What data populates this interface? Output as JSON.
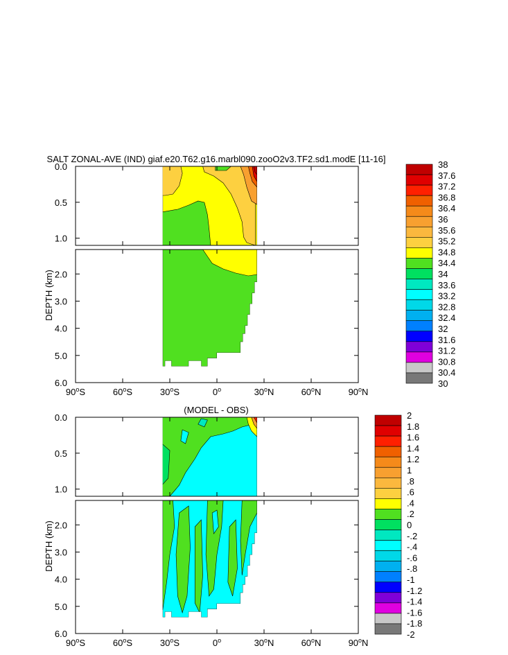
{
  "chart_data": [
    {
      "type": "heatmap",
      "title": "SALT ZONAL-AVE (IND) giaf.e20.T62.g16.marbl090.zooO2v3.TF2.sd1.modE [11-16]",
      "ylabel": "DEPTH (km)",
      "xlabel": "",
      "x_ticks": [
        "90°S",
        "60°S",
        "30°S",
        "0°",
        "30°N",
        "60°N",
        "90°N"
      ],
      "x_tick_values": [
        -90,
        -60,
        -30,
        0,
        30,
        60,
        90
      ],
      "xlim": [
        -90,
        90
      ],
      "y_ticks_upper": [
        "0.0",
        "0.5",
        "1.0"
      ],
      "y_ticks_lower": [
        "2.0",
        "3.0",
        "4.0",
        "5.0",
        "6.0"
      ],
      "ylim_upper_km": [
        0,
        1.1
      ],
      "ylim_lower_km": [
        1.1,
        6.0
      ],
      "colorbar_levels": [
        "38",
        "37.6",
        "37.2",
        "36.8",
        "36.4",
        "36",
        "35.6",
        "35.2",
        "34.8",
        "34.4",
        "34",
        "33.6",
        "33.2",
        "32.8",
        "32.4",
        "32",
        "31.6",
        "31.2",
        "30.8",
        "30.4",
        "30"
      ],
      "colorbar_colors": [
        "#c00000",
        "#e00000",
        "#ff2000",
        "#f06000",
        "#f58a1a",
        "#f8a030",
        "#fbb83e",
        "#fdd040",
        "#ffff00",
        "#50e020",
        "#00e060",
        "#00e8c0",
        "#00ffff",
        "#00d8e8",
        "#00b0f0",
        "#0080ff",
        "#0000ff",
        "#8000d8",
        "#e000e0",
        "#c8c8c8",
        "#787878"
      ]
    },
    {
      "type": "heatmap",
      "title": "(MODEL - OBS)",
      "ylabel": "DEPTH (km)",
      "xlabel": "",
      "x_ticks": [
        "90°S",
        "60°S",
        "30°S",
        "0°",
        "30°N",
        "60°N",
        "90°N"
      ],
      "x_tick_values": [
        -90,
        -60,
        -30,
        0,
        30,
        60,
        90
      ],
      "xlim": [
        -90,
        90
      ],
      "y_ticks_upper": [
        "0.0",
        "0.5",
        "1.0"
      ],
      "y_ticks_lower": [
        "2.0",
        "3.0",
        "4.0",
        "5.0",
        "6.0"
      ],
      "ylim_upper_km": [
        0,
        1.1
      ],
      "ylim_lower_km": [
        1.1,
        6.0
      ],
      "colorbar_levels": [
        "2",
        "1.8",
        "1.6",
        "1.4",
        "1.2",
        "1",
        ".8",
        ".6",
        ".4",
        ".2",
        "0",
        "-.2",
        "-.4",
        "-.6",
        "-.8",
        "-1",
        "-1.2",
        "-1.4",
        "-1.6",
        "-1.8",
        "-2"
      ],
      "colorbar_colors": [
        "#c00000",
        "#e00000",
        "#ff2000",
        "#f06000",
        "#f58a1a",
        "#f8a030",
        "#fbb83e",
        "#fdd040",
        "#ffff00",
        "#50e020",
        "#00e060",
        "#00e8c0",
        "#00ffff",
        "#00d8e8",
        "#00b0f0",
        "#0080ff",
        "#0000ff",
        "#8000d8",
        "#e000e0",
        "#c8c8c8",
        "#787878"
      ]
    }
  ]
}
